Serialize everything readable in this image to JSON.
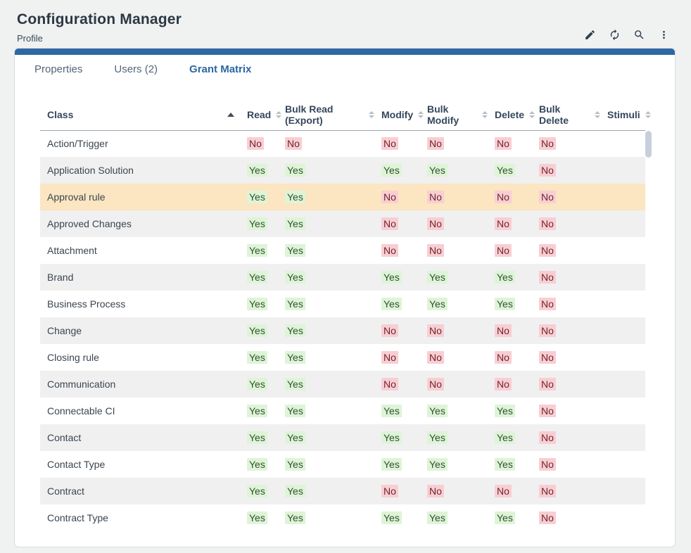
{
  "header": {
    "title": "Configuration Manager",
    "subtitle": "Profile",
    "actions": [
      {
        "name": "edit",
        "icon": "edit-icon"
      },
      {
        "name": "refresh",
        "icon": "refresh-icon"
      },
      {
        "name": "search",
        "icon": "search-icon"
      },
      {
        "name": "more",
        "icon": "kebab-menu-icon"
      }
    ]
  },
  "tabs": [
    {
      "label": "Properties",
      "active": false
    },
    {
      "label": "Users (2)",
      "active": false
    },
    {
      "label": "Grant Matrix",
      "active": true
    }
  ],
  "table": {
    "columns": [
      {
        "label": "Class",
        "sort": "asc"
      },
      {
        "label": "Read",
        "sort": "both"
      },
      {
        "label": "Bulk Read (Export)",
        "sort": "both"
      },
      {
        "label": "Modify",
        "sort": "both"
      },
      {
        "label": "Bulk Modify",
        "sort": "both"
      },
      {
        "label": "Delete",
        "sort": "both"
      },
      {
        "label": "Bulk Delete",
        "sort": "both"
      },
      {
        "label": "Stimuli",
        "sort": "both"
      }
    ],
    "rows": [
      {
        "class": "Action/Trigger",
        "highlighted": false,
        "values": [
          "No",
          "No",
          "No",
          "No",
          "No",
          "No",
          ""
        ]
      },
      {
        "class": "Application Solution",
        "highlighted": false,
        "values": [
          "Yes",
          "Yes",
          "Yes",
          "Yes",
          "Yes",
          "No",
          ""
        ]
      },
      {
        "class": "Approval rule",
        "highlighted": true,
        "values": [
          "Yes",
          "Yes",
          "No",
          "No",
          "No",
          "No",
          ""
        ]
      },
      {
        "class": "Approved Changes",
        "highlighted": false,
        "values": [
          "Yes",
          "Yes",
          "No",
          "No",
          "No",
          "No",
          ""
        ]
      },
      {
        "class": "Attachment",
        "highlighted": false,
        "values": [
          "Yes",
          "Yes",
          "No",
          "No",
          "No",
          "No",
          ""
        ]
      },
      {
        "class": "Brand",
        "highlighted": false,
        "values": [
          "Yes",
          "Yes",
          "Yes",
          "Yes",
          "Yes",
          "No",
          ""
        ]
      },
      {
        "class": "Business Process",
        "highlighted": false,
        "values": [
          "Yes",
          "Yes",
          "Yes",
          "Yes",
          "Yes",
          "No",
          ""
        ]
      },
      {
        "class": "Change",
        "highlighted": false,
        "values": [
          "Yes",
          "Yes",
          "No",
          "No",
          "No",
          "No",
          ""
        ]
      },
      {
        "class": "Closing rule",
        "highlighted": false,
        "values": [
          "Yes",
          "Yes",
          "No",
          "No",
          "No",
          "No",
          ""
        ]
      },
      {
        "class": "Communication",
        "highlighted": false,
        "values": [
          "Yes",
          "Yes",
          "No",
          "No",
          "No",
          "No",
          ""
        ]
      },
      {
        "class": "Connectable CI",
        "highlighted": false,
        "values": [
          "Yes",
          "Yes",
          "Yes",
          "Yes",
          "Yes",
          "No",
          ""
        ]
      },
      {
        "class": "Contact",
        "highlighted": false,
        "values": [
          "Yes",
          "Yes",
          "Yes",
          "Yes",
          "Yes",
          "No",
          ""
        ]
      },
      {
        "class": "Contact Type",
        "highlighted": false,
        "values": [
          "Yes",
          "Yes",
          "Yes",
          "Yes",
          "Yes",
          "No",
          ""
        ]
      },
      {
        "class": "Contract",
        "highlighted": false,
        "values": [
          "Yes",
          "Yes",
          "No",
          "No",
          "No",
          "No",
          ""
        ]
      },
      {
        "class": "Contract Type",
        "highlighted": false,
        "values": [
          "Yes",
          "Yes",
          "Yes",
          "Yes",
          "Yes",
          "No",
          ""
        ]
      }
    ]
  },
  "colors": {
    "accent_blue": "#2d68a4",
    "active_tab_blue": "#2b67a3",
    "highlight_row": "#fce5c1",
    "yes_bg": "#def4d7",
    "yes_text": "#32502f",
    "no_bg": "#f8ced3",
    "no_text": "#6f242c",
    "stripe_row": "#f0f0f0",
    "page_bg": "#f0f1f1"
  }
}
